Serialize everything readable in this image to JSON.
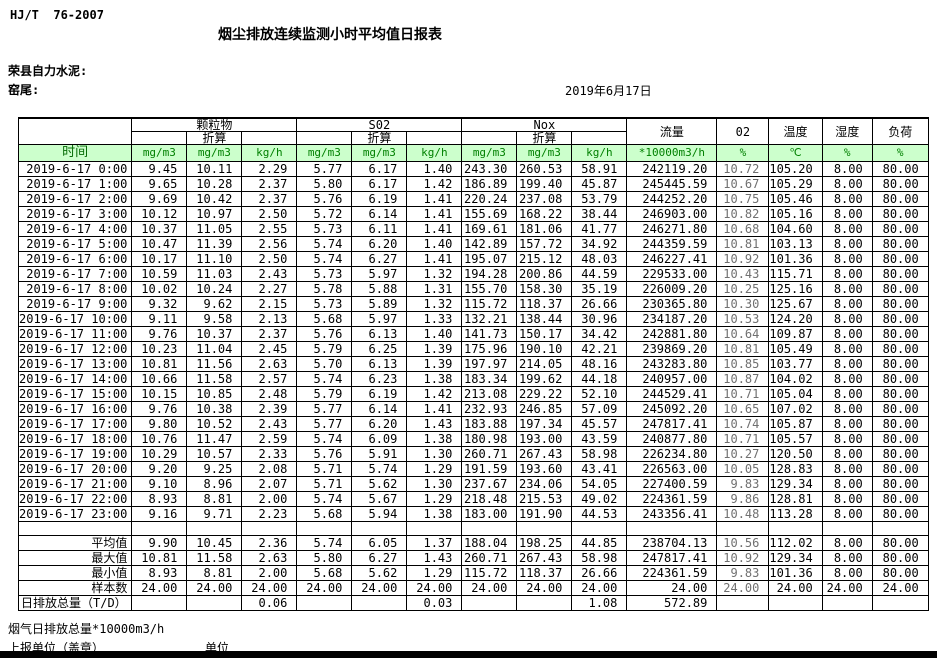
{
  "page": {
    "standard_label": "HJ/T  76-2007",
    "title": "烟尘排放连续监测小时平均值日报表",
    "company": "荣县自力水泥:",
    "location": "窑尾:",
    "date": "2019年6月17日"
  },
  "table": {
    "time_header": "时间",
    "groups": {
      "pm": "颗粒物",
      "so2": "S02",
      "nox": "Nox",
      "conv": "折算",
      "flow": "流量",
      "o2": "02",
      "temp": "温度",
      "humidity": "湿度",
      "load": "负荷"
    },
    "units": [
      "mg/m3",
      "mg/m3",
      "kg/h",
      "mg/m3",
      "mg/m3",
      "kg/h",
      "mg/m3",
      "mg/m3",
      "kg/h",
      "*10000m3/h",
      "%",
      "℃",
      "%",
      "%"
    ],
    "rows": [
      [
        "2019-6-17 0:00",
        "9.45",
        "10.11",
        "2.29",
        "5.77",
        "6.17",
        "1.40",
        "243.30",
        "260.53",
        "58.91",
        "242119.20",
        "10.72",
        "105.20",
        "8.00",
        "80.00"
      ],
      [
        "2019-6-17 1:00",
        "9.65",
        "10.28",
        "2.37",
        "5.80",
        "6.17",
        "1.42",
        "186.89",
        "199.40",
        "45.87",
        "245445.59",
        "10.67",
        "105.29",
        "8.00",
        "80.00"
      ],
      [
        "2019-6-17 2:00",
        "9.69",
        "10.42",
        "2.37",
        "5.76",
        "6.19",
        "1.41",
        "220.24",
        "237.08",
        "53.79",
        "244252.20",
        "10.75",
        "105.46",
        "8.00",
        "80.00"
      ],
      [
        "2019-6-17 3:00",
        "10.12",
        "10.97",
        "2.50",
        "5.72",
        "6.14",
        "1.41",
        "155.69",
        "168.22",
        "38.44",
        "246903.00",
        "10.82",
        "105.16",
        "8.00",
        "80.00"
      ],
      [
        "2019-6-17 4:00",
        "10.37",
        "11.05",
        "2.55",
        "5.73",
        "6.11",
        "1.41",
        "169.61",
        "181.06",
        "41.77",
        "246271.80",
        "10.68",
        "104.60",
        "8.00",
        "80.00"
      ],
      [
        "2019-6-17 5:00",
        "10.47",
        "11.39",
        "2.56",
        "5.74",
        "6.20",
        "1.40",
        "142.89",
        "157.72",
        "34.92",
        "244359.59",
        "10.81",
        "103.13",
        "8.00",
        "80.00"
      ],
      [
        "2019-6-17 6:00",
        "10.17",
        "11.10",
        "2.50",
        "5.74",
        "6.27",
        "1.41",
        "195.07",
        "215.12",
        "48.03",
        "246227.41",
        "10.92",
        "101.36",
        "8.00",
        "80.00"
      ],
      [
        "2019-6-17 7:00",
        "10.59",
        "11.03",
        "2.43",
        "5.73",
        "5.97",
        "1.32",
        "194.28",
        "200.86",
        "44.59",
        "229533.00",
        "10.43",
        "115.71",
        "8.00",
        "80.00"
      ],
      [
        "2019-6-17 8:00",
        "10.02",
        "10.24",
        "2.27",
        "5.78",
        "5.88",
        "1.31",
        "155.70",
        "158.30",
        "35.19",
        "226009.20",
        "10.25",
        "125.16",
        "8.00",
        "80.00"
      ],
      [
        "2019-6-17 9:00",
        "9.32",
        "9.62",
        "2.15",
        "5.73",
        "5.89",
        "1.32",
        "115.72",
        "118.37",
        "26.66",
        "230365.80",
        "10.30",
        "125.67",
        "8.00",
        "80.00"
      ],
      [
        "2019-6-17 10:00",
        "9.11",
        "9.58",
        "2.13",
        "5.68",
        "5.97",
        "1.33",
        "132.21",
        "138.44",
        "30.96",
        "234187.20",
        "10.53",
        "124.20",
        "8.00",
        "80.00"
      ],
      [
        "2019-6-17 11:00",
        "9.76",
        "10.37",
        "2.37",
        "5.76",
        "6.13",
        "1.40",
        "141.73",
        "150.17",
        "34.42",
        "242881.80",
        "10.64",
        "109.87",
        "8.00",
        "80.00"
      ],
      [
        "2019-6-17 12:00",
        "10.23",
        "11.04",
        "2.45",
        "5.79",
        "6.25",
        "1.39",
        "175.96",
        "190.10",
        "42.21",
        "239869.20",
        "10.81",
        "105.49",
        "8.00",
        "80.00"
      ],
      [
        "2019-6-17 13:00",
        "10.81",
        "11.56",
        "2.63",
        "5.70",
        "6.13",
        "1.39",
        "197.97",
        "214.05",
        "48.16",
        "243283.80",
        "10.85",
        "103.77",
        "8.00",
        "80.00"
      ],
      [
        "2019-6-17 14:00",
        "10.66",
        "11.58",
        "2.57",
        "5.74",
        "6.23",
        "1.38",
        "183.34",
        "199.62",
        "44.18",
        "240957.00",
        "10.87",
        "104.02",
        "8.00",
        "80.00"
      ],
      [
        "2019-6-17 15:00",
        "10.15",
        "10.85",
        "2.48",
        "5.79",
        "6.19",
        "1.42",
        "213.08",
        "229.22",
        "52.10",
        "244529.41",
        "10.71",
        "105.04",
        "8.00",
        "80.00"
      ],
      [
        "2019-6-17 16:00",
        "9.76",
        "10.38",
        "2.39",
        "5.77",
        "6.14",
        "1.41",
        "232.93",
        "246.85",
        "57.09",
        "245092.20",
        "10.65",
        "107.02",
        "8.00",
        "80.00"
      ],
      [
        "2019-6-17 17:00",
        "9.80",
        "10.52",
        "2.43",
        "5.77",
        "6.20",
        "1.43",
        "183.88",
        "197.34",
        "45.57",
        "247817.41",
        "10.74",
        "105.87",
        "8.00",
        "80.00"
      ],
      [
        "2019-6-17 18:00",
        "10.76",
        "11.47",
        "2.59",
        "5.74",
        "6.09",
        "1.38",
        "180.98",
        "193.00",
        "43.59",
        "240877.80",
        "10.71",
        "105.57",
        "8.00",
        "80.00"
      ],
      [
        "2019-6-17 19:00",
        "10.29",
        "10.57",
        "2.33",
        "5.76",
        "5.91",
        "1.30",
        "260.71",
        "267.43",
        "58.98",
        "226234.80",
        "10.27",
        "120.50",
        "8.00",
        "80.00"
      ],
      [
        "2019-6-17 20:00",
        "9.20",
        "9.25",
        "2.08",
        "5.71",
        "5.74",
        "1.29",
        "191.59",
        "193.60",
        "43.41",
        "226563.00",
        "10.05",
        "128.83",
        "8.00",
        "80.00"
      ],
      [
        "2019-6-17 21:00",
        "9.10",
        "8.96",
        "2.07",
        "5.71",
        "5.62",
        "1.30",
        "237.67",
        "234.06",
        "54.05",
        "227400.59",
        "9.83",
        "129.34",
        "8.00",
        "80.00"
      ],
      [
        "2019-6-17 22:00",
        "8.93",
        "8.81",
        "2.00",
        "5.74",
        "5.67",
        "1.29",
        "218.48",
        "215.53",
        "49.02",
        "224361.59",
        "9.86",
        "128.81",
        "8.00",
        "80.00"
      ],
      [
        "2019-6-17 23:00",
        "9.16",
        "9.71",
        "2.23",
        "5.68",
        "5.94",
        "1.38",
        "183.00",
        "191.90",
        "44.53",
        "243356.41",
        "10.48",
        "113.28",
        "8.00",
        "80.00"
      ]
    ],
    "summary": [
      {
        "label": "平均值",
        "values": [
          "9.90",
          "10.45",
          "2.36",
          "5.74",
          "6.05",
          "1.37",
          "188.04",
          "198.25",
          "44.85",
          "238704.13",
          "10.56",
          "112.02",
          "8.00",
          "80.00"
        ]
      },
      {
        "label": "最大值",
        "values": [
          "10.81",
          "11.58",
          "2.63",
          "5.80",
          "6.27",
          "1.43",
          "260.71",
          "267.43",
          "58.98",
          "247817.41",
          "10.92",
          "129.34",
          "8.00",
          "80.00"
        ]
      },
      {
        "label": "最小值",
        "values": [
          "8.93",
          "8.81",
          "2.00",
          "5.68",
          "5.62",
          "1.29",
          "115.72",
          "118.37",
          "26.66",
          "224361.59",
          "9.83",
          "101.36",
          "8.00",
          "80.00"
        ]
      },
      {
        "label": "样本数",
        "values": [
          "24.00",
          "24.00",
          "24.00",
          "24.00",
          "24.00",
          "24.00",
          "24.00",
          "24.00",
          "24.00",
          "24.00",
          "24.00",
          "24.00",
          "24.00",
          "24.00"
        ]
      }
    ],
    "total_row": {
      "label": "日排放总量（T/D）",
      "values": [
        "",
        "",
        "0.06",
        "",
        "",
        "0.03",
        "",
        "",
        "1.08",
        "572.89",
        "",
        "",
        "",
        ""
      ]
    }
  },
  "footer": {
    "flow_note": "烟气日排放总量*10000m3/h",
    "report_unit_label": "上报单位（盖章）",
    "unit_label": "单位"
  },
  "colors": {
    "header_bg": "#ccffcc",
    "header_text": "#008000",
    "border": "#000000",
    "o2_text": "#707070"
  }
}
